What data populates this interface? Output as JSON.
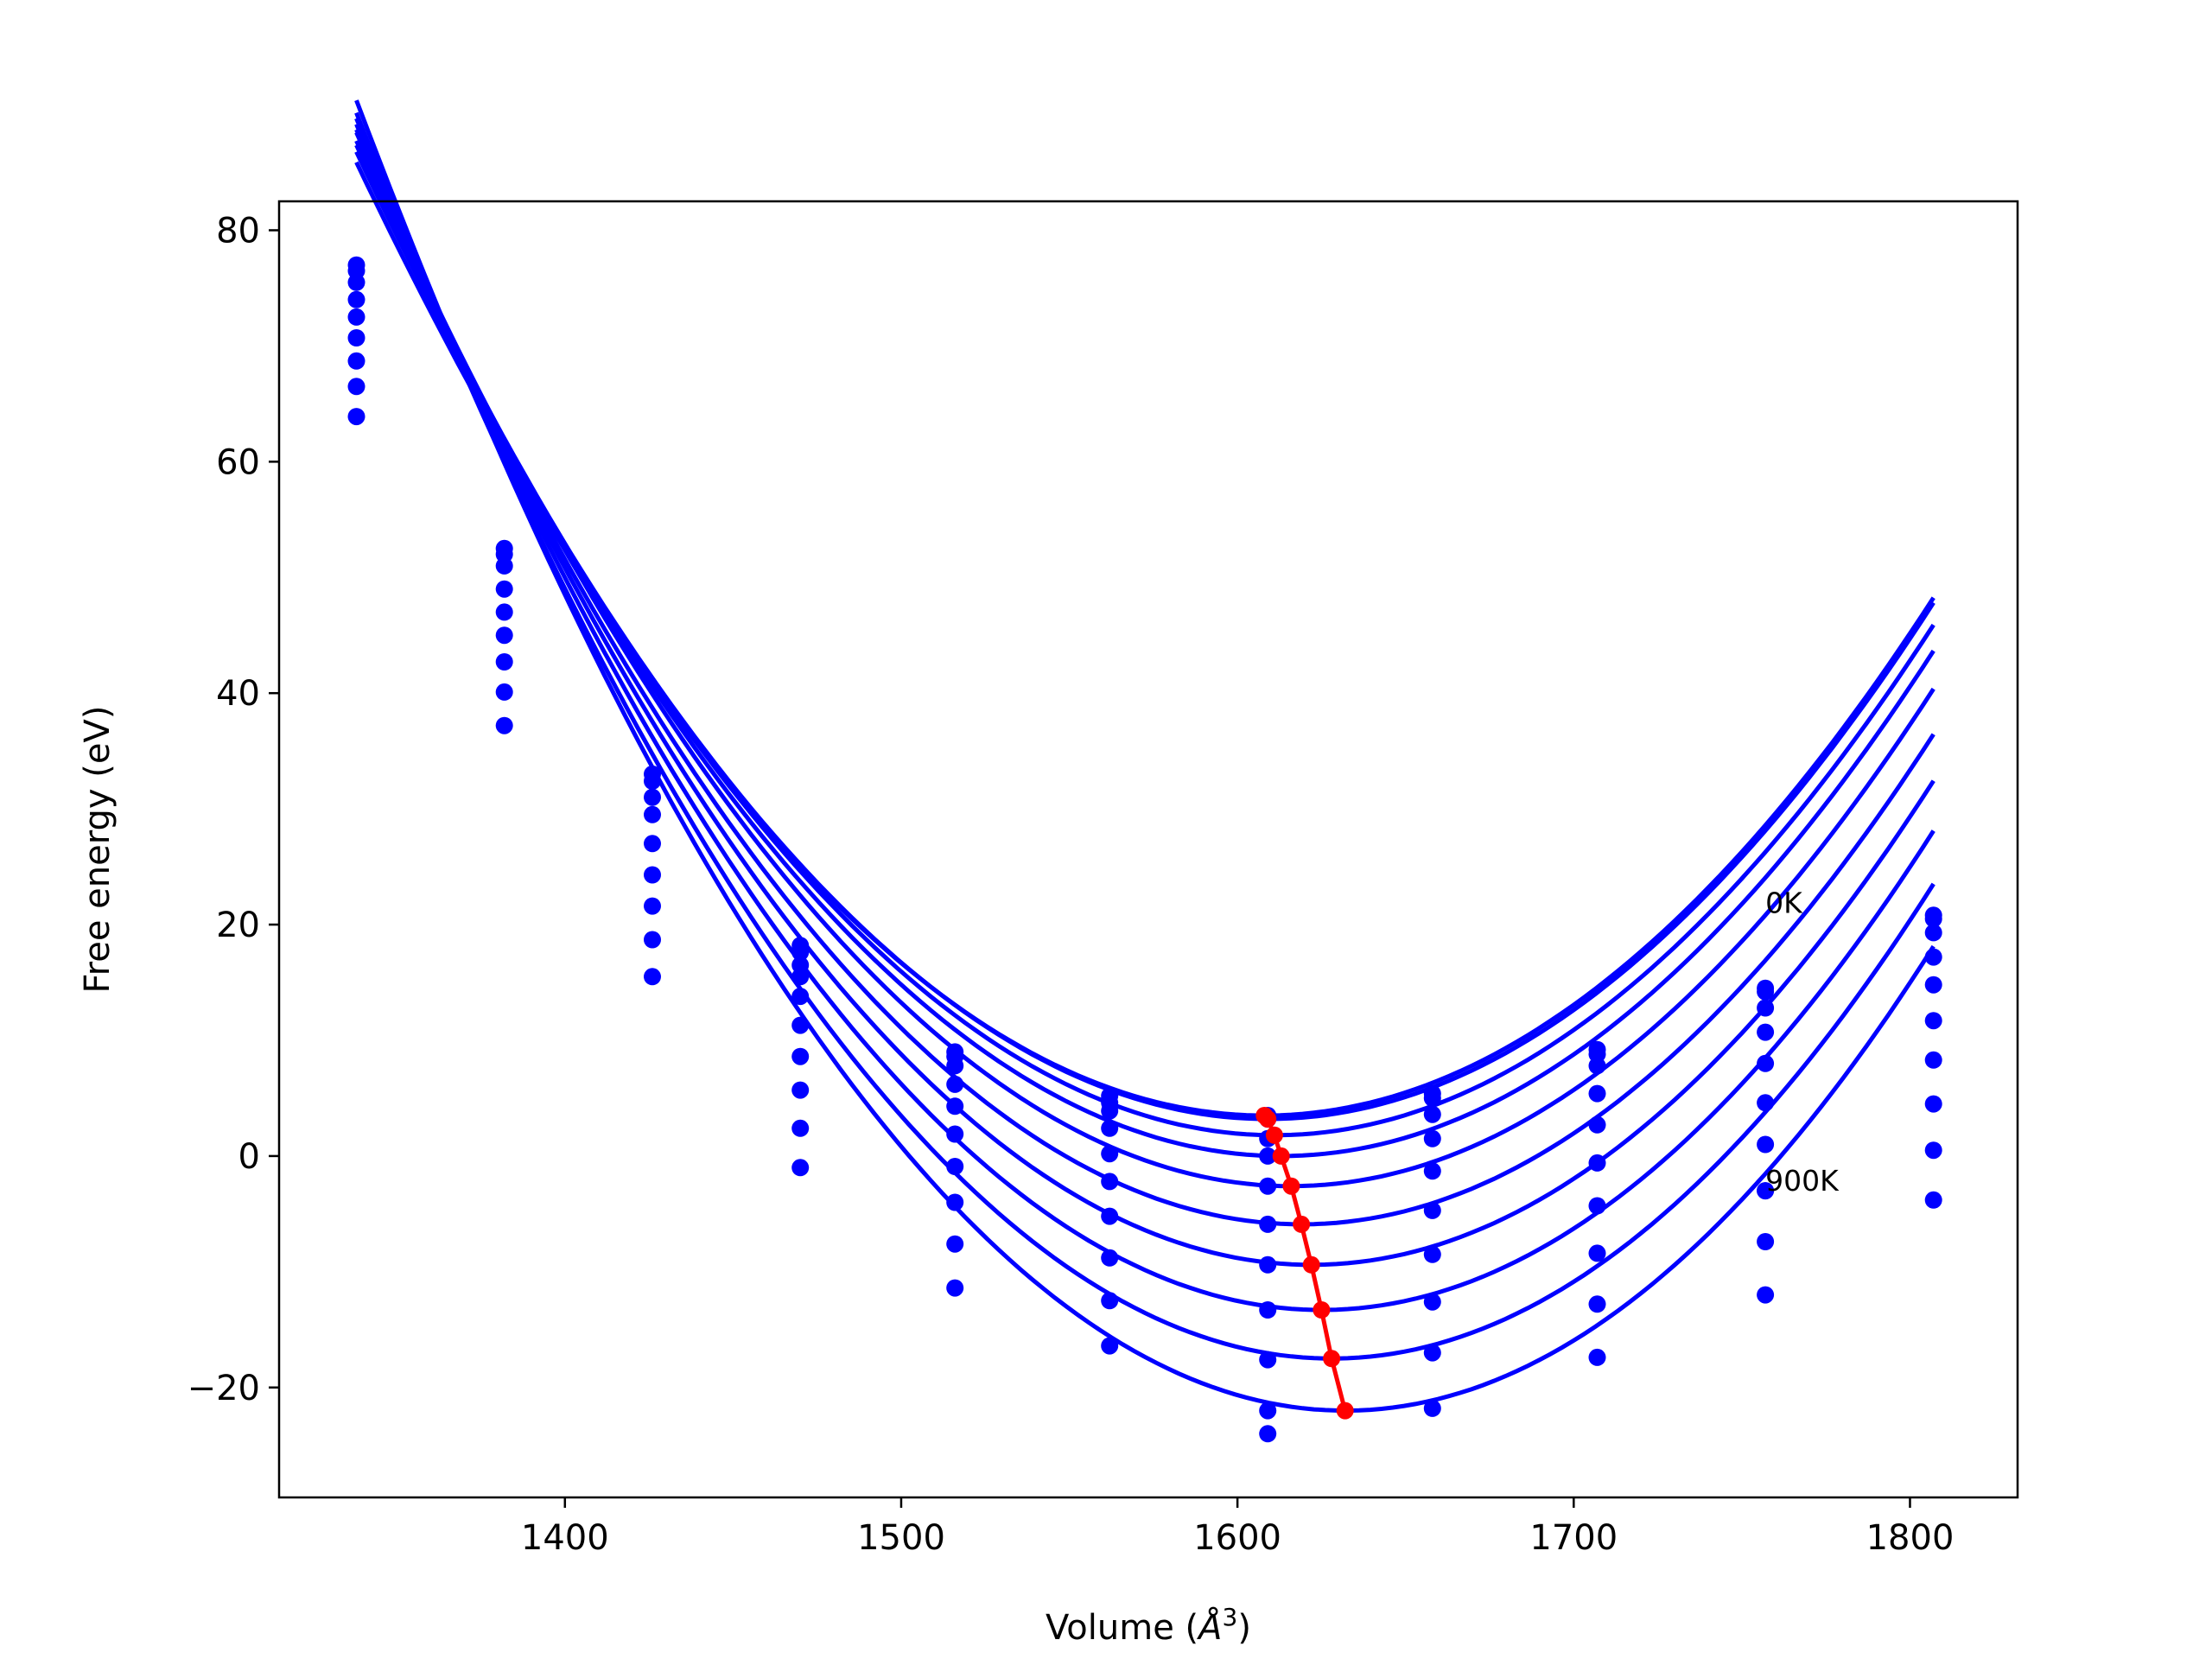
{
  "chart_data": {
    "type": "line",
    "title": "",
    "xlabel": "Volume (",
    "xlabel_symbol": "Å",
    "xlabel_sup": "3",
    "xlabel_close": ")",
    "ylabel": "Free energy (eV)",
    "xlim": [
      1315,
      1832
    ],
    "ylim": [
      -29.5,
      82.5
    ],
    "xticks": [
      1400,
      1500,
      1600,
      1700,
      1800
    ],
    "yticks": [
      -20,
      0,
      20,
      40,
      60,
      80
    ],
    "xtick_labels": [
      "1400",
      "1500",
      "1600",
      "1700",
      "1800"
    ],
    "ytick_labels": [
      "−20",
      "0",
      "20",
      "40",
      "60",
      "80"
    ],
    "grid": false,
    "colors": {
      "fit_curves": "#0000ff",
      "data_points": "#0000ff",
      "minimum_path": "#ff0000"
    },
    "volumes": [
      1338,
      1382,
      1426,
      1470,
      1516,
      1562,
      1609,
      1658,
      1707,
      1757,
      1807
    ],
    "series": [
      {
        "V0": 1608.0,
        "E0": 3.5,
        "k": 0.00113,
        "points": [
          77.0,
          52.5,
          33.0,
          18.2,
          9.0,
          5.2,
          3.5,
          5.4,
          9.2,
          14.5,
          20.8
        ]
      },
      {
        "V0": 1609.0,
        "E0": 3.2,
        "k": 0.001138,
        "points": [
          76.5,
          52.0,
          32.4,
          17.6,
          8.6,
          4.6,
          3.2,
          5.0,
          8.8,
          14.2,
          20.5
        ]
      },
      {
        "V0": 1611.0,
        "E0": 1.8,
        "k": 0.001148,
        "points": [
          75.5,
          51.0,
          31.0,
          16.5,
          7.8,
          3.9,
          1.5,
          3.6,
          7.8,
          12.8,
          19.3
        ]
      },
      {
        "V0": 1613.0,
        "E0": 0.0,
        "k": 0.00116,
        "points": [
          74.0,
          49.0,
          29.5,
          15.5,
          6.2,
          2.4,
          0.0,
          1.5,
          5.4,
          10.7,
          17.2
        ]
      },
      {
        "V0": 1616.0,
        "E0": -2.6,
        "k": 0.001178,
        "points": [
          72.5,
          47.0,
          27.0,
          13.8,
          4.3,
          0.2,
          -2.6,
          -1.3,
          2.7,
          8.0,
          14.8
        ]
      },
      {
        "V0": 1619.0,
        "E0": -5.9,
        "k": 0.001198,
        "points": [
          70.7,
          45.0,
          24.3,
          11.3,
          1.9,
          -2.2,
          -5.9,
          -4.7,
          -0.6,
          4.6,
          11.7
        ]
      },
      {
        "V0": 1622.0,
        "E0": -9.4,
        "k": 0.001222,
        "points": [
          68.7,
          42.7,
          21.6,
          8.6,
          -0.9,
          -5.2,
          -9.4,
          -8.5,
          -4.3,
          1.0,
          8.3
        ]
      },
      {
        "V0": 1625.0,
        "E0": -13.3,
        "k": 0.00125,
        "points": [
          66.5,
          40.1,
          18.7,
          5.7,
          -4.0,
          -8.8,
          -13.3,
          -12.6,
          -8.4,
          -3.0,
          4.5
        ]
      },
      {
        "V0": 1628.0,
        "E0": -17.5,
        "k": 0.00128,
        "points": [
          63.9,
          37.2,
          15.5,
          2.4,
          -7.6,
          -12.5,
          -17.6,
          -17.0,
          -12.8,
          -7.4,
          0.5
        ]
      },
      {
        "V0": 1632.0,
        "E0": -22.0,
        "k": 0.00131,
        "points": [
          null,
          null,
          null,
          -1.0,
          -11.4,
          -16.4,
          -22.0,
          -21.8,
          -17.4,
          -12.0,
          -3.8
        ]
      }
    ],
    "extra_points": [
      {
        "x": 1609,
        "y": -24.0
      },
      {
        "x": 1757,
        "y": -3.0
      }
    ],
    "minimum_path": {
      "x": [
        1608,
        1609,
        1611,
        1613,
        1616,
        1619,
        1622,
        1625,
        1628,
        1632
      ],
      "y": [
        3.5,
        3.2,
        1.8,
        0.0,
        -2.6,
        -5.9,
        -9.4,
        -13.3,
        -17.5,
        -22.0
      ]
    },
    "annotations": [
      {
        "text": "0K",
        "x": 1757,
        "y": 21.0
      },
      {
        "text": "900K",
        "x": 1757,
        "y": -3.0
      }
    ]
  }
}
